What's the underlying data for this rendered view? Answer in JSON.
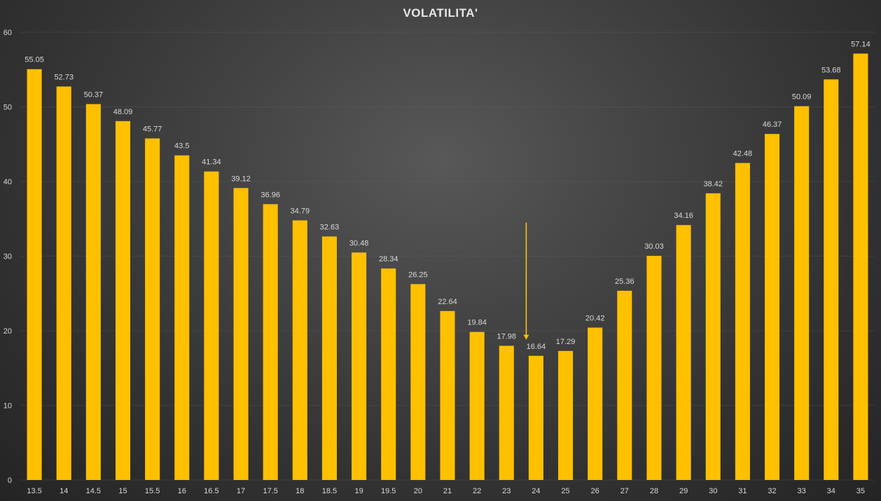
{
  "chart_data": {
    "type": "bar",
    "title": "VOLATILITA'",
    "xlabel": "",
    "ylabel": "",
    "categories": [
      "13.5",
      "14",
      "14.5",
      "15",
      "15.5",
      "16",
      "16.5",
      "17",
      "17.5",
      "18",
      "18.5",
      "19",
      "19.5",
      "20",
      "21",
      "22",
      "23",
      "24",
      "25",
      "26",
      "27",
      "28",
      "29",
      "30",
      "31",
      "32",
      "33",
      "34",
      "35"
    ],
    "values": [
      55.05,
      52.73,
      50.37,
      48.09,
      45.77,
      43.5,
      41.34,
      39.12,
      36.96,
      34.79,
      32.63,
      30.48,
      28.34,
      26.25,
      22.64,
      19.84,
      17.98,
      16.64,
      17.29,
      20.42,
      25.36,
      30.03,
      34.16,
      38.42,
      42.48,
      46.37,
      50.09,
      53.68,
      57.14
    ],
    "ylim": [
      0,
      60
    ],
    "yticks": [
      0,
      10,
      20,
      30,
      40,
      50,
      60
    ],
    "grid": true,
    "legend": "none",
    "annotations": [
      {
        "type": "arrow",
        "points_to_category": "24",
        "from_y": 34.5,
        "to_y": 18.8
      }
    ],
    "colors": {
      "bar": "#FFC000",
      "arrow": "#FFC000",
      "text": "#D9D9D9",
      "title": "#E6E6E6"
    }
  }
}
